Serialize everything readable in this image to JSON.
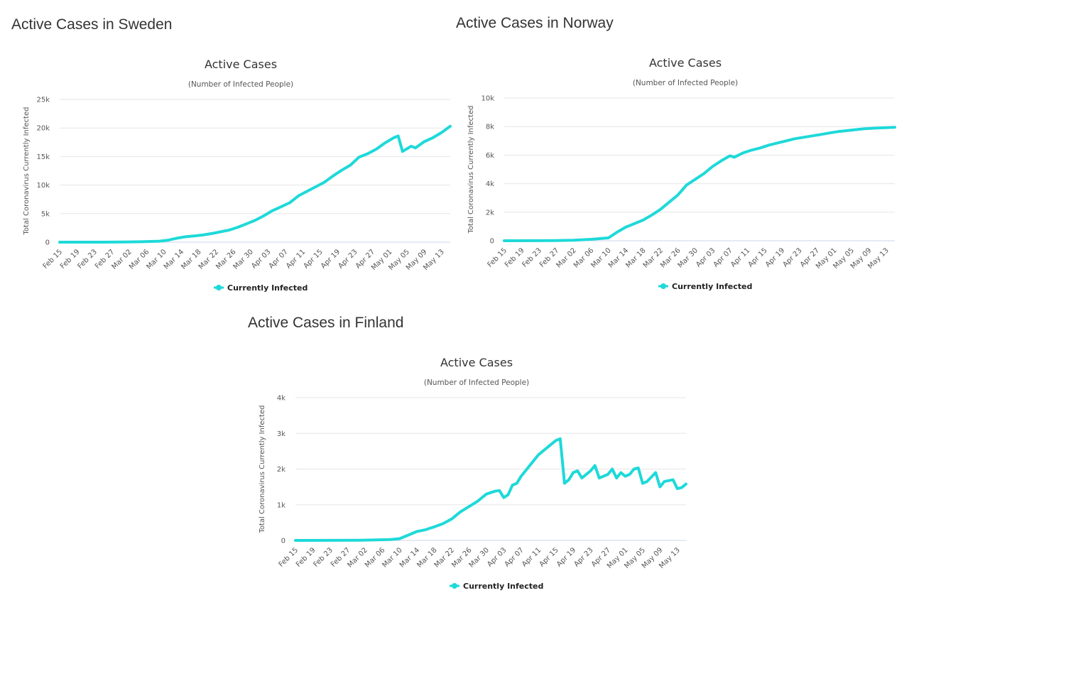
{
  "colors": {
    "series": "#1ed9d9",
    "text": "#333333",
    "grid": "#e6e6e6"
  },
  "panels": [
    {
      "heading": "Active Cases in Sweden"
    },
    {
      "heading": "Active Cases in Norway"
    },
    {
      "heading": "Active Cases in Finland"
    }
  ],
  "chart_data": [
    {
      "type": "line",
      "title": "Active Cases",
      "subtitle": "(Number of Infected People)",
      "ylabel": "Total Coronavirus Currently Infected",
      "xlabel": "",
      "ylim": [
        0,
        25000
      ],
      "yticks": [
        0,
        5000,
        10000,
        15000,
        20000,
        25000
      ],
      "ytick_labels": [
        "0",
        "5k",
        "10k",
        "15k",
        "20k",
        "25k"
      ],
      "xticks": [
        "Feb 15",
        "Feb 19",
        "Feb 23",
        "Feb 27",
        "Mar 02",
        "Mar 06",
        "Mar 10",
        "Mar 14",
        "Mar 18",
        "Mar 22",
        "Mar 26",
        "Mar 30",
        "Apr 03",
        "Apr 07",
        "Apr 11",
        "Apr 15",
        "Apr 19",
        "Apr 23",
        "Apr 27",
        "May 01",
        "May 05",
        "May 09",
        "May 13"
      ],
      "x_range": [
        "Feb 15",
        "May 15"
      ],
      "grid": true,
      "legend": "bottom-center",
      "series": [
        {
          "name": "Currently Infected",
          "points": [
            [
              "Feb 15",
              0
            ],
            [
              "Feb 25",
              5
            ],
            [
              "Mar 01",
              20
            ],
            [
              "Mar 05",
              80
            ],
            [
              "Mar 09",
              180
            ],
            [
              "Mar 11",
              350
            ],
            [
              "Mar 13",
              700
            ],
            [
              "Mar 15",
              950
            ],
            [
              "Mar 17",
              1100
            ],
            [
              "Mar 19",
              1250
            ],
            [
              "Mar 21",
              1500
            ],
            [
              "Mar 23",
              1800
            ],
            [
              "Mar 25",
              2100
            ],
            [
              "Mar 27",
              2600
            ],
            [
              "Mar 29",
              3200
            ],
            [
              "Mar 31",
              3800
            ],
            [
              "Apr 02",
              4600
            ],
            [
              "Apr 04",
              5500
            ],
            [
              "Apr 06",
              6200
            ],
            [
              "Apr 08",
              6900
            ],
            [
              "Apr 10",
              8100
            ],
            [
              "Apr 12",
              8900
            ],
            [
              "Apr 14",
              9700
            ],
            [
              "Apr 16",
              10500
            ],
            [
              "Apr 18",
              11600
            ],
            [
              "Apr 20",
              12600
            ],
            [
              "Apr 22",
              13500
            ],
            [
              "Apr 24",
              14900
            ],
            [
              "Apr 26",
              15500
            ],
            [
              "Apr 28",
              16300
            ],
            [
              "Apr 30",
              17400
            ],
            [
              "May 02",
              18300
            ],
            [
              "May 03",
              18600
            ],
            [
              "May 04",
              15900
            ],
            [
              "May 06",
              16800
            ],
            [
              "May 07",
              16500
            ],
            [
              "May 09",
              17600
            ],
            [
              "May 11",
              18300
            ],
            [
              "May 13",
              19200
            ],
            [
              "May 15",
              20300
            ]
          ]
        }
      ]
    },
    {
      "type": "line",
      "title": "Active Cases",
      "subtitle": "(Number of Infected People)",
      "ylabel": "Total Coronavirus Currently Infected",
      "xlabel": "",
      "ylim": [
        0,
        10000
      ],
      "yticks": [
        0,
        2000,
        4000,
        6000,
        8000,
        10000
      ],
      "ytick_labels": [
        "0",
        "2k",
        "4k",
        "6k",
        "8k",
        "10k"
      ],
      "xticks": [
        "Feb 15",
        "Feb 19",
        "Feb 23",
        "Feb 27",
        "Mar 02",
        "Mar 06",
        "Mar 10",
        "Mar 14",
        "Mar 18",
        "Mar 22",
        "Mar 26",
        "Mar 30",
        "Apr 03",
        "Apr 07",
        "Apr 11",
        "Apr 15",
        "Apr 19",
        "Apr 23",
        "Apr 27",
        "May 01",
        "May 05",
        "May 09",
        "May 13"
      ],
      "x_range": [
        "Feb 15",
        "May 15"
      ],
      "grid": true,
      "legend": "bottom-center",
      "series": [
        {
          "name": "Currently Infected",
          "points": [
            [
              "Feb 15",
              0
            ],
            [
              "Feb 27",
              10
            ],
            [
              "Mar 02",
              40
            ],
            [
              "Mar 06",
              100
            ],
            [
              "Mar 10",
              200
            ],
            [
              "Mar 12",
              600
            ],
            [
              "Mar 14",
              950
            ],
            [
              "Mar 16",
              1200
            ],
            [
              "Mar 18",
              1450
            ],
            [
              "Mar 20",
              1800
            ],
            [
              "Mar 22",
              2200
            ],
            [
              "Mar 24",
              2700
            ],
            [
              "Mar 26",
              3200
            ],
            [
              "Mar 28",
              3900
            ],
            [
              "Mar 30",
              4300
            ],
            [
              "Apr 01",
              4700
            ],
            [
              "Apr 03",
              5200
            ],
            [
              "Apr 05",
              5600
            ],
            [
              "Apr 07",
              5950
            ],
            [
              "Apr 08",
              5850
            ],
            [
              "Apr 10",
              6150
            ],
            [
              "Apr 12",
              6350
            ],
            [
              "Apr 14",
              6500
            ],
            [
              "Apr 16",
              6700
            ],
            [
              "Apr 18",
              6850
            ],
            [
              "Apr 20",
              7000
            ],
            [
              "Apr 22",
              7150
            ],
            [
              "Apr 24",
              7250
            ],
            [
              "Apr 26",
              7350
            ],
            [
              "Apr 28",
              7450
            ],
            [
              "Apr 30",
              7550
            ],
            [
              "May 02",
              7650
            ],
            [
              "May 05",
              7750
            ],
            [
              "May 08",
              7850
            ],
            [
              "May 11",
              7900
            ],
            [
              "May 15",
              7950
            ]
          ]
        }
      ]
    },
    {
      "type": "line",
      "title": "Active Cases",
      "subtitle": "(Number of Infected People)",
      "ylabel": "Total Coronavirus Currently Infected",
      "xlabel": "",
      "ylim": [
        0,
        4000
      ],
      "yticks": [
        0,
        1000,
        2000,
        3000,
        4000
      ],
      "ytick_labels": [
        "0",
        "1k",
        "2k",
        "3k",
        "4k"
      ],
      "xticks": [
        "Feb 15",
        "Feb 19",
        "Feb 23",
        "Feb 27",
        "Mar 02",
        "Mar 06",
        "Mar 10",
        "Mar 14",
        "Mar 18",
        "Mar 22",
        "Mar 26",
        "Mar 30",
        "Apr 03",
        "Apr 07",
        "Apr 11",
        "Apr 15",
        "Apr 19",
        "Apr 23",
        "Apr 27",
        "May 01",
        "May 05",
        "May 09",
        "May 13"
      ],
      "x_range": [
        "Feb 15",
        "May 15"
      ],
      "grid": true,
      "legend": "bottom-center",
      "series": [
        {
          "name": "Currently Infected",
          "points": [
            [
              "Feb 15",
              0
            ],
            [
              "Mar 01",
              5
            ],
            [
              "Mar 08",
              25
            ],
            [
              "Mar 10",
              50
            ],
            [
              "Mar 12",
              150
            ],
            [
              "Mar 14",
              250
            ],
            [
              "Mar 16",
              300
            ],
            [
              "Mar 18",
              380
            ],
            [
              "Mar 20",
              470
            ],
            [
              "Mar 22",
              600
            ],
            [
              "Mar 24",
              800
            ],
            [
              "Mar 26",
              950
            ],
            [
              "Mar 28",
              1100
            ],
            [
              "Mar 30",
              1300
            ],
            [
              "Apr 01",
              1380
            ],
            [
              "Apr 02",
              1400
            ],
            [
              "Apr 03",
              1200
            ],
            [
              "Apr 04",
              1280
            ],
            [
              "Apr 05",
              1550
            ],
            [
              "Apr 06",
              1600
            ],
            [
              "Apr 07",
              1800
            ],
            [
              "Apr 09",
              2100
            ],
            [
              "Apr 11",
              2400
            ],
            [
              "Apr 13",
              2600
            ],
            [
              "Apr 15",
              2800
            ],
            [
              "Apr 16",
              2850
            ],
            [
              "Apr 17",
              1600
            ],
            [
              "Apr 18",
              1700
            ],
            [
              "Apr 19",
              1900
            ],
            [
              "Apr 20",
              1950
            ],
            [
              "Apr 21",
              1750
            ],
            [
              "Apr 23",
              1950
            ],
            [
              "Apr 24",
              2100
            ],
            [
              "Apr 25",
              1750
            ],
            [
              "Apr 27",
              1850
            ],
            [
              "Apr 28",
              2000
            ],
            [
              "Apr 29",
              1750
            ],
            [
              "Apr 30",
              1900
            ],
            [
              "May 01",
              1800
            ],
            [
              "May 02",
              1850
            ],
            [
              "May 03",
              2000
            ],
            [
              "May 04",
              2030
            ],
            [
              "May 05",
              1600
            ],
            [
              "May 06",
              1650
            ],
            [
              "May 08",
              1900
            ],
            [
              "May 09",
              1500
            ],
            [
              "May 10",
              1650
            ],
            [
              "May 12",
              1700
            ],
            [
              "May 13",
              1450
            ],
            [
              "May 14",
              1480
            ],
            [
              "May 15",
              1580
            ]
          ]
        }
      ]
    }
  ]
}
